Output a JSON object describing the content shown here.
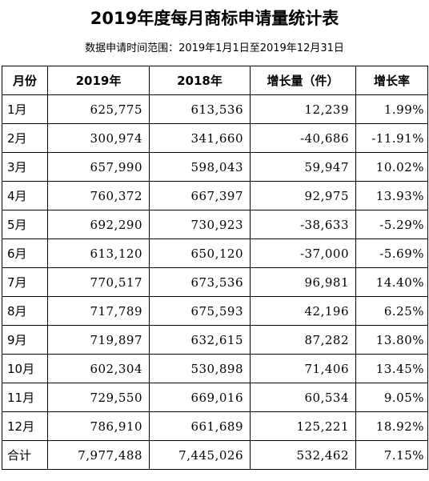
{
  "title": "2019年度每月商标申请量统计表",
  "subtitle": "数据申请时间范围：2019年1月1日至2019年12月31日",
  "table": {
    "headers": [
      "月份",
      "2019年",
      "2018年",
      "增长量（件）",
      "增长率"
    ],
    "rows": [
      [
        "1月",
        "625,775",
        "613,536",
        "12,239",
        "1.99%"
      ],
      [
        "2月",
        "300,974",
        "341,660",
        "-40,686",
        "-11.91%"
      ],
      [
        "3月",
        "657,990",
        "598,043",
        "59,947",
        "10.02%"
      ],
      [
        "4月",
        "760,372",
        "667,397",
        "92,975",
        "13.93%"
      ],
      [
        "5月",
        "692,290",
        "730,923",
        "-38,633",
        "-5.29%"
      ],
      [
        "6月",
        "613,120",
        "650,120",
        "-37,000",
        "-5.69%"
      ],
      [
        "7月",
        "770,517",
        "673,536",
        "96,981",
        "14.40%"
      ],
      [
        "8月",
        "717,789",
        "675,593",
        "42,196",
        "6.25%"
      ],
      [
        "9月",
        "719,897",
        "632,615",
        "87,282",
        "13.80%"
      ],
      [
        "10月",
        "602,304",
        "530,898",
        "71,406",
        "13.45%"
      ],
      [
        "11月",
        "729,550",
        "669,016",
        "60,534",
        "9.05%"
      ],
      [
        "12月",
        "786,910",
        "661,689",
        "125,221",
        "18.92%"
      ],
      [
        "合计",
        "7,977,488",
        "7,445,026",
        "532,462",
        "7.15%"
      ]
    ]
  }
}
